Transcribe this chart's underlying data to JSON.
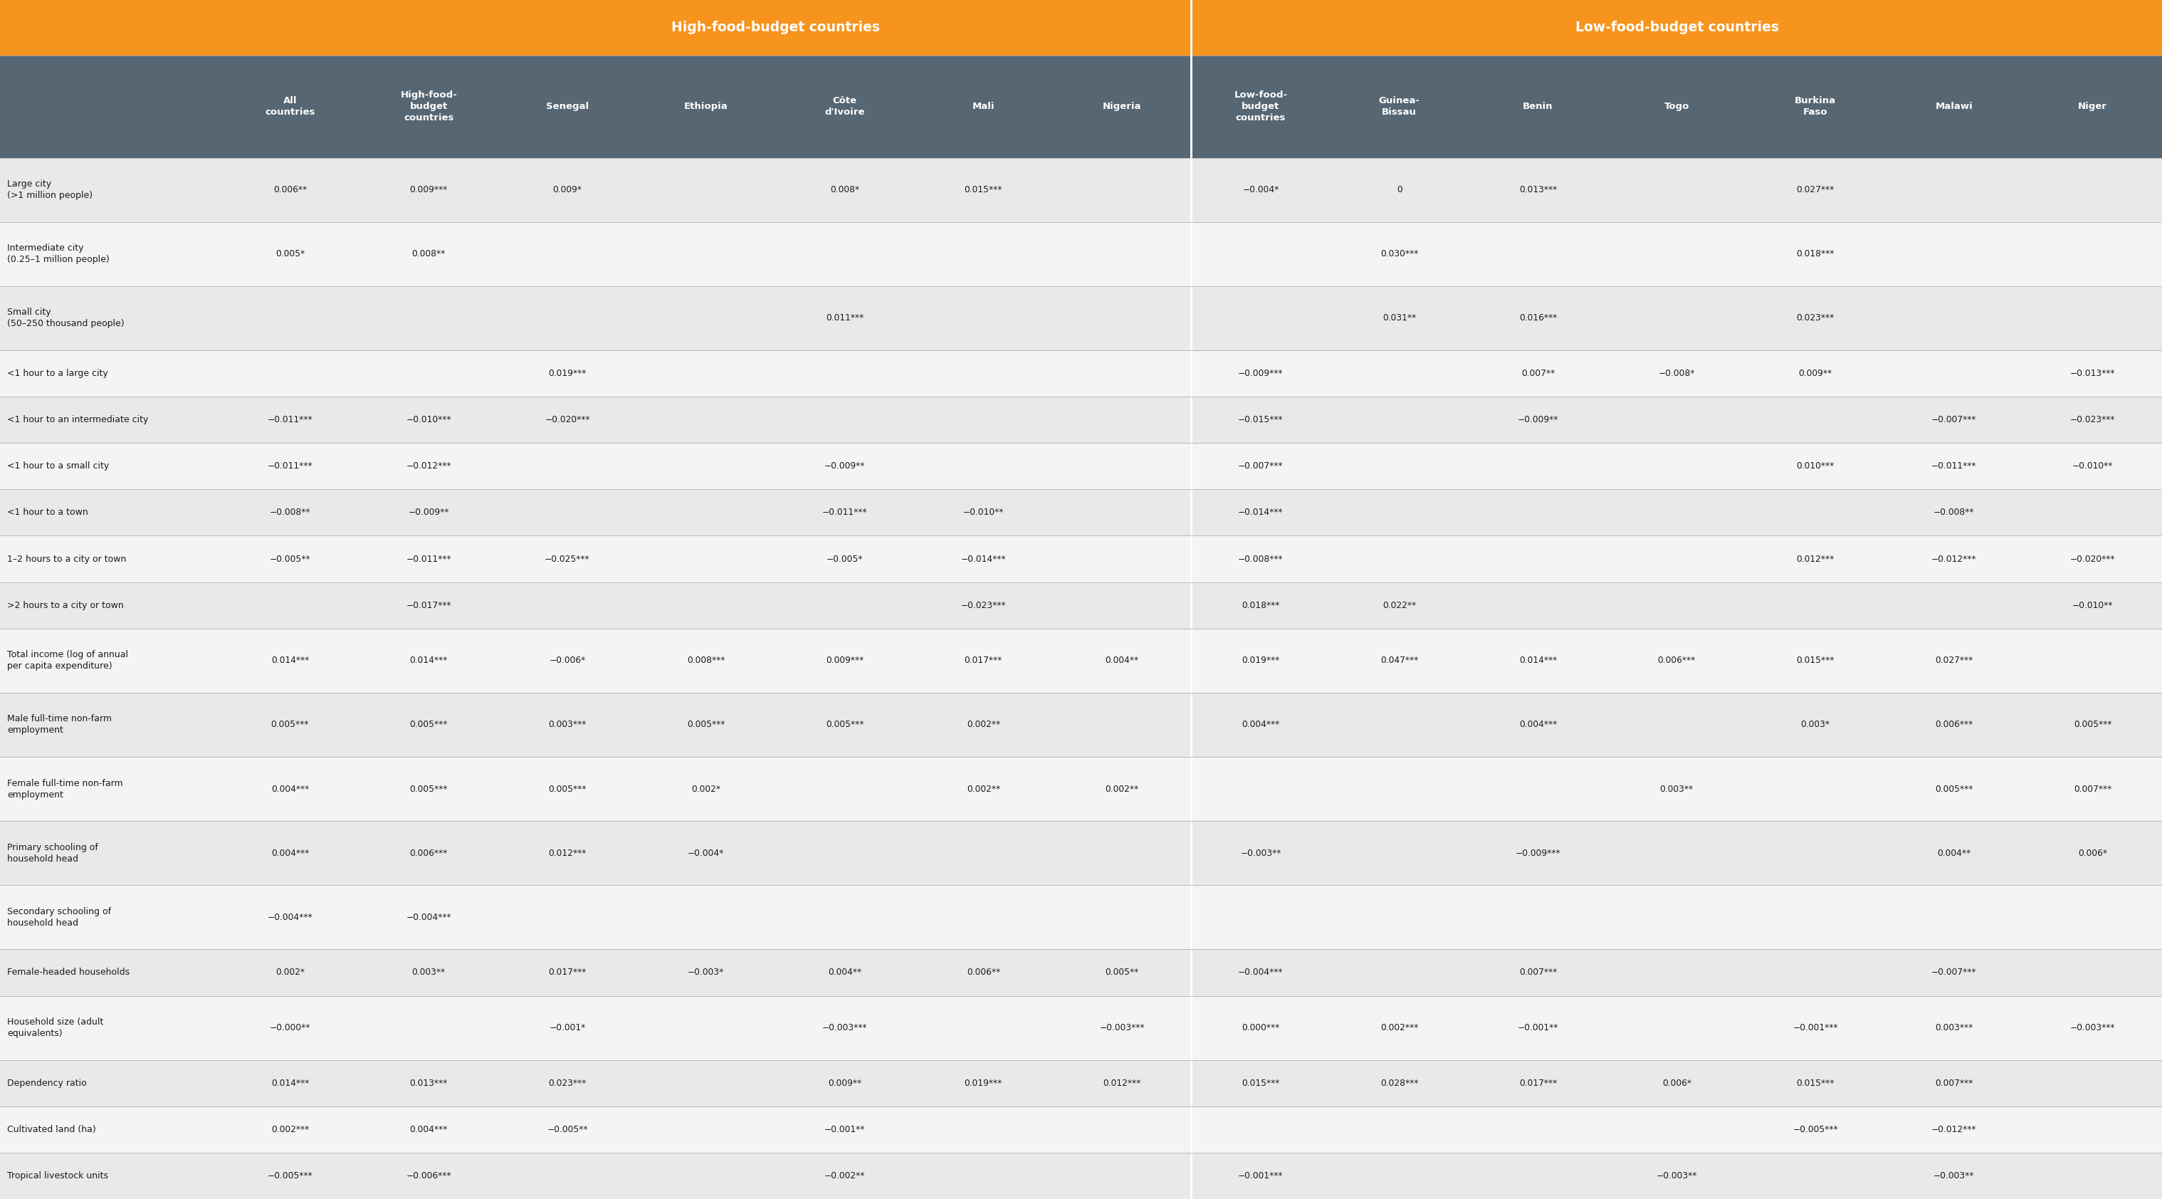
{
  "orange": "#F7941D",
  "dark_gray": "#566672",
  "row_bg_even": "#E9E9E9",
  "row_bg_odd": "#F4F4F4",
  "text_white": "#FFFFFF",
  "text_dark": "#1A1A1A",
  "sep_white": "#FFFFFF",
  "border_color": "#BBBBBB",
  "col_headers_mid": [
    "All\ncountries",
    "High-food-\nbudget\ncountries",
    "Senegal",
    "Ethiopia",
    "Côte\nd'Ivoire",
    "Mali",
    "Nigeria",
    "Low-food-\nbudget\ncountries",
    "Guinea-\nBissau",
    "Benin",
    "Togo",
    "Burkina\nFaso",
    "Malawi",
    "Niger"
  ],
  "rows": [
    {
      "label": "Large city\n(>1 million people)",
      "values": [
        "0.006**",
        "0.009***",
        "0.009*",
        "",
        "0.008*",
        "0.015***",
        "",
        "−0.004*",
        "0",
        "0.013***",
        "",
        "0.027***",
        "",
        ""
      ]
    },
    {
      "label": "Intermediate city\n(0.25–1 million people)",
      "values": [
        "0.005*",
        "0.008**",
        "",
        "",
        "",
        "",
        "",
        "",
        "0.030***",
        "",
        "",
        "0.018***",
        "",
        ""
      ]
    },
    {
      "label": "Small city\n(50–250 thousand people)",
      "values": [
        "",
        "",
        "",
        "",
        "0.011***",
        "",
        "",
        "",
        "0.031**",
        "0.016***",
        "",
        "0.023***",
        "",
        ""
      ]
    },
    {
      "label": "<1 hour to a large city",
      "values": [
        "",
        "",
        "0.019***",
        "",
        "",
        "",
        "",
        "−0.009***",
        "",
        "0.007**",
        "−0.008*",
        "0.009**",
        "",
        "−0.013***"
      ]
    },
    {
      "label": "<1 hour to an intermediate city",
      "values": [
        "−0.011***",
        "−0.010***",
        "−0.020***",
        "",
        "",
        "",
        "",
        "−0.015***",
        "",
        "−0.009**",
        "",
        "",
        "−0.007***",
        "−0.023***"
      ]
    },
    {
      "label": "<1 hour to a small city",
      "values": [
        "−0.011***",
        "−0.012***",
        "",
        "",
        "−0.009**",
        "",
        "",
        "−0.007***",
        "",
        "",
        "",
        "0.010***",
        "−0.011***",
        "−0.010**"
      ]
    },
    {
      "label": "<1 hour to a town",
      "values": [
        "−0.008**",
        "−0.009**",
        "",
        "",
        "−0.011***",
        "−0.010**",
        "",
        "−0.014***",
        "",
        "",
        "",
        "",
        "−0.008**",
        ""
      ]
    },
    {
      "label": "1–2 hours to a city or town",
      "values": [
        "−0.005**",
        "−0.011***",
        "−0.025***",
        "",
        "−0.005*",
        "−0.014***",
        "",
        "−0.008***",
        "",
        "",
        "",
        "0.012***",
        "−0.012***",
        "−0.020***"
      ]
    },
    {
      "label": ">2 hours to a city or town",
      "values": [
        "",
        "−0.017***",
        "",
        "",
        "",
        "−0.023***",
        "",
        "0.018***",
        "0.022**",
        "",
        "",
        "",
        "",
        "−0.010**"
      ]
    },
    {
      "label": "Total income (log of annual\nper capita expenditure)",
      "values": [
        "0.014***",
        "0.014***",
        "−0.006*",
        "0.008***",
        "0.009***",
        "0.017***",
        "0.004**",
        "0.019***",
        "0.047***",
        "0.014***",
        "0.006***",
        "0.015***",
        "0.027***",
        ""
      ]
    },
    {
      "label": "Male full-time non-farm\nemployment",
      "values": [
        "0.005***",
        "0.005***",
        "0.003***",
        "0.005***",
        "0.005***",
        "0.002**",
        "",
        "0.004***",
        "",
        "0.004***",
        "",
        "0.003*",
        "0.006***",
        "0.005***"
      ]
    },
    {
      "label": "Female full-time non-farm\nemployment",
      "values": [
        "0.004***",
        "0.005***",
        "0.005***",
        "0.002*",
        "",
        "0.002**",
        "0.002**",
        "",
        "",
        "",
        "0.003**",
        "",
        "0.005***",
        "0.007***"
      ]
    },
    {
      "label": "Primary schooling of\nhousehold head",
      "values": [
        "0.004***",
        "0.006***",
        "0.012***",
        "−0.004*",
        "",
        "",
        "",
        "−0.003**",
        "",
        "−0.009***",
        "",
        "",
        "0.004**",
        "0.006*"
      ]
    },
    {
      "label": "Secondary schooling of\nhousehold head",
      "values": [
        "−0.004***",
        "−0.004***",
        "",
        "",
        "",
        "",
        "",
        "",
        "",
        "",
        "",
        "",
        "",
        ""
      ]
    },
    {
      "label": "Female-headed households",
      "values": [
        "0.002*",
        "0.003**",
        "0.017***",
        "−0.003*",
        "0.004**",
        "0.006**",
        "0.005**",
        "−0.004***",
        "",
        "0.007***",
        "",
        "",
        "−0.007***",
        ""
      ]
    },
    {
      "label": "Household size (adult\nequivalents)",
      "values": [
        "−0.000**",
        "",
        "−0.001*",
        "",
        "−0.003***",
        "",
        "−0.003***",
        "0.000***",
        "0.002***",
        "−0.001**",
        "",
        "−0.001***",
        "0.003***",
        "−0.003***"
      ]
    },
    {
      "label": "Dependency ratio",
      "values": [
        "0.014***",
        "0.013***",
        "0.023***",
        "",
        "0.009**",
        "0.019***",
        "0.012***",
        "0.015***",
        "0.028***",
        "0.017***",
        "0.006*",
        "0.015***",
        "0.007***",
        ""
      ]
    },
    {
      "label": "Cultivated land (ha)",
      "values": [
        "0.002***",
        "0.004***",
        "−0.005**",
        "",
        "−0.001**",
        "",
        "",
        "",
        "",
        "",
        "",
        "−0.005***",
        "−0.012***",
        ""
      ]
    },
    {
      "label": "Tropical livestock units",
      "values": [
        "−0.005***",
        "−0.006***",
        "",
        "",
        "−0.002**",
        "",
        "",
        "−0.001***",
        "",
        "",
        "−0.003**",
        "",
        "−0.003**",
        ""
      ]
    }
  ]
}
